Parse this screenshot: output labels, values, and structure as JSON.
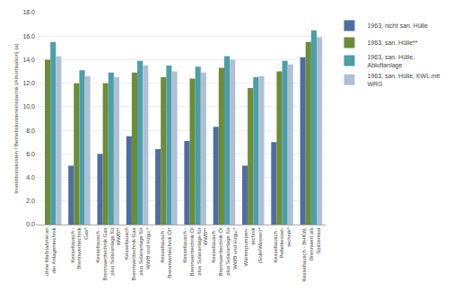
{
  "chart_data": {
    "type": "bar",
    "categories": [
      "ohne Maßnahme an\nder Anlagentechnik",
      "Kesseltausch -\nBrennwerttechnik\nGas*",
      "Kesseltausch -\nBrennwerttechnik Gas\nplus Solaranlage für\nWWB**",
      "Kesseltausch\nBrennwerttechnik Gas\nplus Solaranlage für\nWWB und Hzgu.*",
      "Kesseltausch -\nBrennwerttechnik Öl*",
      "Kesseltausch -\nBrennwerttechnik Öl\nplus Solaranlage für\nWWB**",
      "Kesseltausch -\nBrennwerttechnik Öl\nplus Solaranlage für\nWWB und Hzgu.*",
      "Wärmepumpen-\ntechnik\n(Sole/Wasser)*",
      "Kesseltausch -\nPelletkessel-\ntechnik*",
      "Kesseltausch - BHKW,\nBrennwert als\nSpitzenlast"
    ],
    "series": [
      {
        "name": "1963, nicht san. Hülle",
        "color": "#4f6e9e",
        "values": [
          0,
          5.0,
          6.0,
          7.5,
          6.4,
          7.1,
          8.3,
          5.0,
          7.0,
          14.2
        ]
      },
      {
        "name": "1963, san. Hülle**",
        "color": "#6b8c3a",
        "values": [
          14.0,
          12.0,
          12.0,
          12.9,
          12.5,
          12.4,
          13.3,
          11.6,
          13.0,
          15.5
        ]
      },
      {
        "name": "1963, san. Hülle,\nAbluftanlage",
        "color": "#4e9ea8",
        "values": [
          15.5,
          13.1,
          12.9,
          13.9,
          13.5,
          13.4,
          14.3,
          12.5,
          13.9,
          16.5
        ]
      },
      {
        "name": "1963, san. Hülle, KWL mit\nWRG",
        "color": "#afc0d6",
        "values": [
          14.3,
          12.6,
          12.5,
          13.5,
          13.0,
          12.9,
          14.0,
          12.6,
          13.6,
          15.9
        ]
      }
    ],
    "ylabel": "Investitionskosten / Betriebskosteneinsparnis (Amortisation) (a)",
    "ylim": [
      0,
      18.0
    ],
    "yticks": [
      {
        "value": 0.0,
        "label": "0.0"
      },
      {
        "value": 2.0,
        "label": "2.0"
      },
      {
        "value": 4.0,
        "label": "4.0"
      },
      {
        "value": 6.0,
        "label": "6.0"
      },
      {
        "value": 8.0,
        "label": "8.0"
      },
      {
        "value": 10.0,
        "label": "10.0"
      },
      {
        "value": 12.0,
        "label": "12.0"
      },
      {
        "value": 14.0,
        "label": "14.0"
      },
      {
        "value": 16.0,
        "label": "16.0"
      },
      {
        "value": 18.0,
        "label": "18.0"
      }
    ],
    "grid": true,
    "legend": "right"
  }
}
